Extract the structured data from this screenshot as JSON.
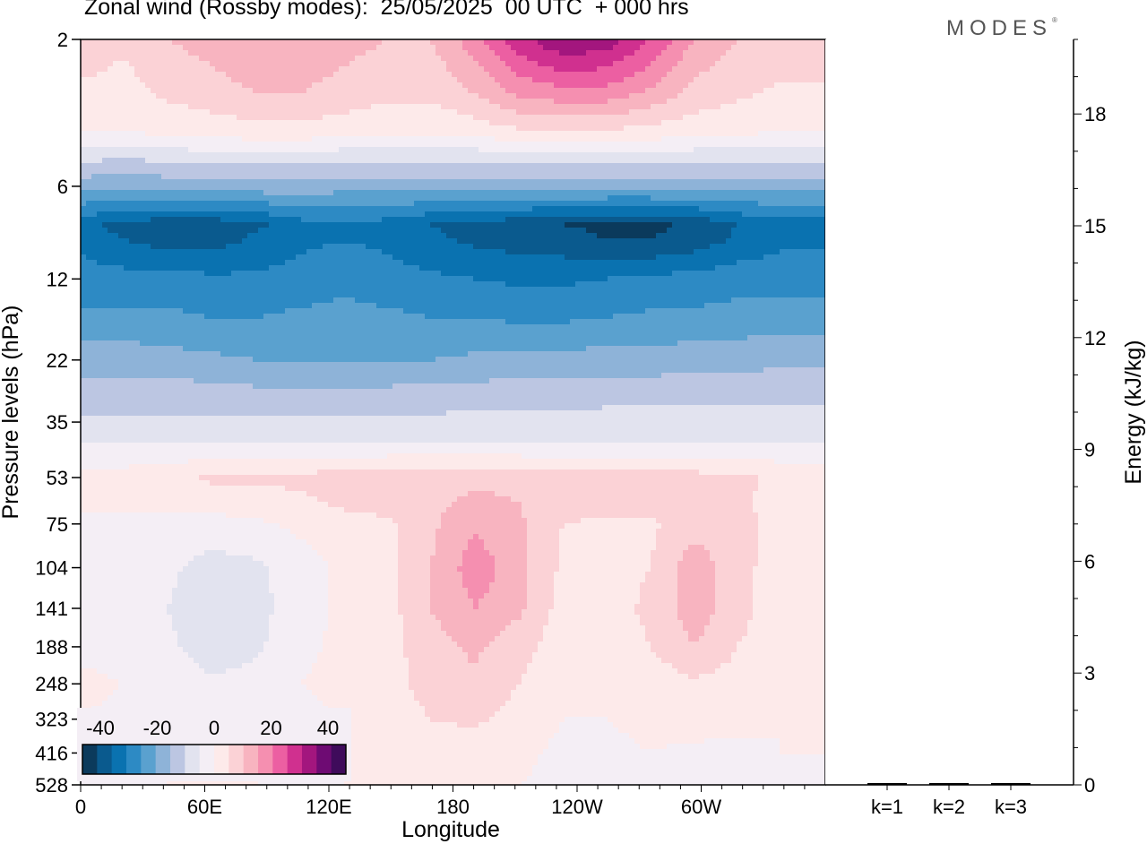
{
  "header": {
    "title": "Zonal wind (Rossby modes):  25/05/2025  00 UTC  + 000 hrs",
    "logo": "MODES",
    "logo_mark": "®"
  },
  "chart_data": [
    {
      "type": "heatmap",
      "xlabel": "Longitude",
      "ylabel": "Pressure levels (hPa)",
      "x_ticks": [
        "0",
        "60E",
        "120E",
        "180",
        "120W",
        "60W"
      ],
      "y_ticks": [
        "2",
        "6",
        "12",
        "22",
        "35",
        "53",
        "75",
        "104",
        "141",
        "188",
        "248",
        "323",
        "416",
        "528"
      ],
      "colorbar": {
        "labels": [
          "-40",
          "-20",
          "0",
          "20",
          "40"
        ],
        "levels": [
          -40,
          -35,
          -30,
          -25,
          -20,
          -15,
          -10,
          -5,
          0,
          5,
          10,
          15,
          20,
          25,
          30,
          35,
          40
        ],
        "colors": [
          "#0b3a5c",
          "#0a5a8e",
          "#0a72b0",
          "#2d8ac4",
          "#5aa1cf",
          "#8eb3d8",
          "#bcc6e2",
          "#e2e3ef",
          "#f4eef5",
          "#fdeaea",
          "#fbd2d6",
          "#f8b4c0",
          "#f58fb0",
          "#ec5fa2",
          "#d0308f",
          "#a3167e",
          "#6e0b73",
          "#3f0b5b"
        ]
      },
      "rows": [
        {
          "level": "2",
          "wind": [
            8,
            6,
            10,
            12,
            14,
            14,
            12,
            10,
            10,
            18,
            28,
            35,
            33,
            25,
            15,
            10,
            8,
            8
          ]
        },
        {
          "level": "3",
          "wind": [
            4,
            3,
            6,
            8,
            10,
            10,
            8,
            6,
            6,
            10,
            16,
            18,
            18,
            14,
            8,
            6,
            4,
            4
          ]
        },
        {
          "level": "4",
          "wind": [
            0,
            0,
            1,
            2,
            3,
            3,
            2,
            1,
            1,
            2,
            4,
            4,
            4,
            3,
            2,
            1,
            0,
            0
          ]
        },
        {
          "level": "5",
          "wind": [
            -10,
            -11,
            -10,
            -9,
            -9,
            -9,
            -10,
            -10,
            -10,
            -10,
            -9,
            -9,
            -9,
            -9,
            -10,
            -10,
            -10,
            -10
          ]
        },
        {
          "level": "6",
          "wind": [
            -18,
            -19,
            -18,
            -18,
            -17,
            -17,
            -18,
            -18,
            -18,
            -18,
            -18,
            -18,
            -18,
            -18,
            -18,
            -18,
            -18,
            -18
          ]
        },
        {
          "level": "8",
          "wind": [
            -33,
            -37,
            -38,
            -38,
            -36,
            -32,
            -31,
            -32,
            -35,
            -37,
            -38,
            -40,
            -41,
            -41,
            -39,
            -35,
            -32,
            -32
          ]
        },
        {
          "level": "9",
          "wind": [
            -31,
            -35,
            -37,
            -37,
            -34,
            -31,
            -30,
            -31,
            -34,
            -36,
            -37,
            -38,
            -40,
            -40,
            -38,
            -34,
            -31,
            -31
          ]
        },
        {
          "level": "12",
          "wind": [
            -28,
            -28,
            -28,
            -29,
            -29,
            -28,
            -27,
            -28,
            -29,
            -30,
            -31,
            -31,
            -30,
            -29,
            -28,
            -27,
            -27,
            -27
          ]
        },
        {
          "level": "16",
          "wind": [
            -24,
            -24,
            -24,
            -25,
            -25,
            -24,
            -23,
            -24,
            -25,
            -25,
            -26,
            -26,
            -25,
            -24,
            -24,
            -23,
            -23,
            -23
          ]
        },
        {
          "level": "22",
          "wind": [
            -17,
            -17,
            -18,
            -19,
            -20,
            -20,
            -20,
            -20,
            -20,
            -19,
            -18,
            -18,
            -18,
            -18,
            -17,
            -17,
            -16,
            -16
          ]
        },
        {
          "level": "28",
          "wind": [
            -13,
            -13,
            -13,
            -13,
            -14,
            -14,
            -14,
            -14,
            -13,
            -13,
            -13,
            -13,
            -12,
            -12,
            -12,
            -12,
            -12,
            -12
          ]
        },
        {
          "level": "35",
          "wind": [
            -9,
            -9,
            -9,
            -9,
            -9,
            -9,
            -9,
            -9,
            -9,
            -8,
            -8,
            -8,
            -8,
            -8,
            -8,
            -8,
            -8,
            -8
          ]
        },
        {
          "level": "42",
          "wind": [
            -4,
            -4,
            -4,
            -4,
            -4,
            -4,
            -4,
            -4,
            -4,
            -4,
            -4,
            -4,
            -4,
            -4,
            -4,
            -4,
            -4,
            -4
          ]
        },
        {
          "level": "53",
          "wind": [
            2,
            2,
            3,
            6,
            6,
            6,
            8,
            9,
            9,
            9,
            9,
            8,
            8,
            8,
            7,
            6,
            4,
            3
          ]
        },
        {
          "level": "64",
          "wind": [
            1,
            1,
            1,
            2,
            3,
            4,
            6,
            7,
            9,
            11,
            10,
            7,
            7,
            7,
            7,
            6,
            3,
            2
          ]
        },
        {
          "level": "75",
          "wind": [
            -1,
            -1,
            -2,
            -2,
            -1,
            1,
            3,
            4,
            9,
            14,
            11,
            5,
            4,
            4,
            8,
            7,
            3,
            1
          ]
        },
        {
          "level": "104",
          "wind": [
            -2,
            -3,
            -4,
            -7,
            -6,
            -2,
            1,
            3,
            10,
            18,
            12,
            4,
            3,
            5,
            13,
            7,
            2,
            0
          ]
        },
        {
          "level": "141",
          "wind": [
            -2,
            -3,
            -5,
            -9,
            -7,
            -2,
            1,
            3,
            10,
            15,
            11,
            3,
            3,
            6,
            13,
            7,
            2,
            0
          ]
        },
        {
          "level": "188",
          "wind": [
            -1,
            -2,
            -4,
            -8,
            -6,
            -1,
            1,
            3,
            8,
            11,
            7,
            2,
            2,
            5,
            10,
            5,
            1,
            0
          ]
        },
        {
          "level": "248",
          "wind": [
            1,
            0,
            -2,
            -4,
            -3,
            0,
            1,
            3,
            7,
            9,
            5,
            1,
            1,
            2,
            4,
            3,
            0,
            0
          ]
        },
        {
          "level": "323",
          "wind": [
            0,
            -1,
            -1,
            -2,
            -2,
            -1,
            0,
            2,
            5,
            6,
            3,
            0,
            0,
            1,
            2,
            1,
            0,
            0
          ]
        },
        {
          "level": "416",
          "wind": [
            0,
            -1,
            0,
            1,
            0,
            -1,
            0,
            1,
            2,
            2,
            1,
            -1,
            -1,
            0,
            -1,
            -1,
            0,
            0
          ]
        },
        {
          "level": "528",
          "wind": [
            0,
            -1,
            0,
            1,
            0,
            -1,
            0,
            1,
            1,
            1,
            0,
            -1,
            -2,
            0,
            -1,
            -1,
            0,
            -1
          ]
        }
      ]
    },
    {
      "type": "bar",
      "ylabel": "Energy (kJ/kg)",
      "categories": [
        "k=1",
        "k=2",
        "k=3"
      ],
      "values": [
        0.02,
        0.02,
        0.02
      ],
      "y_ticks": [
        "0",
        "3",
        "6",
        "9",
        "12",
        "15",
        "18"
      ],
      "ylim": [
        0,
        20
      ]
    }
  ]
}
